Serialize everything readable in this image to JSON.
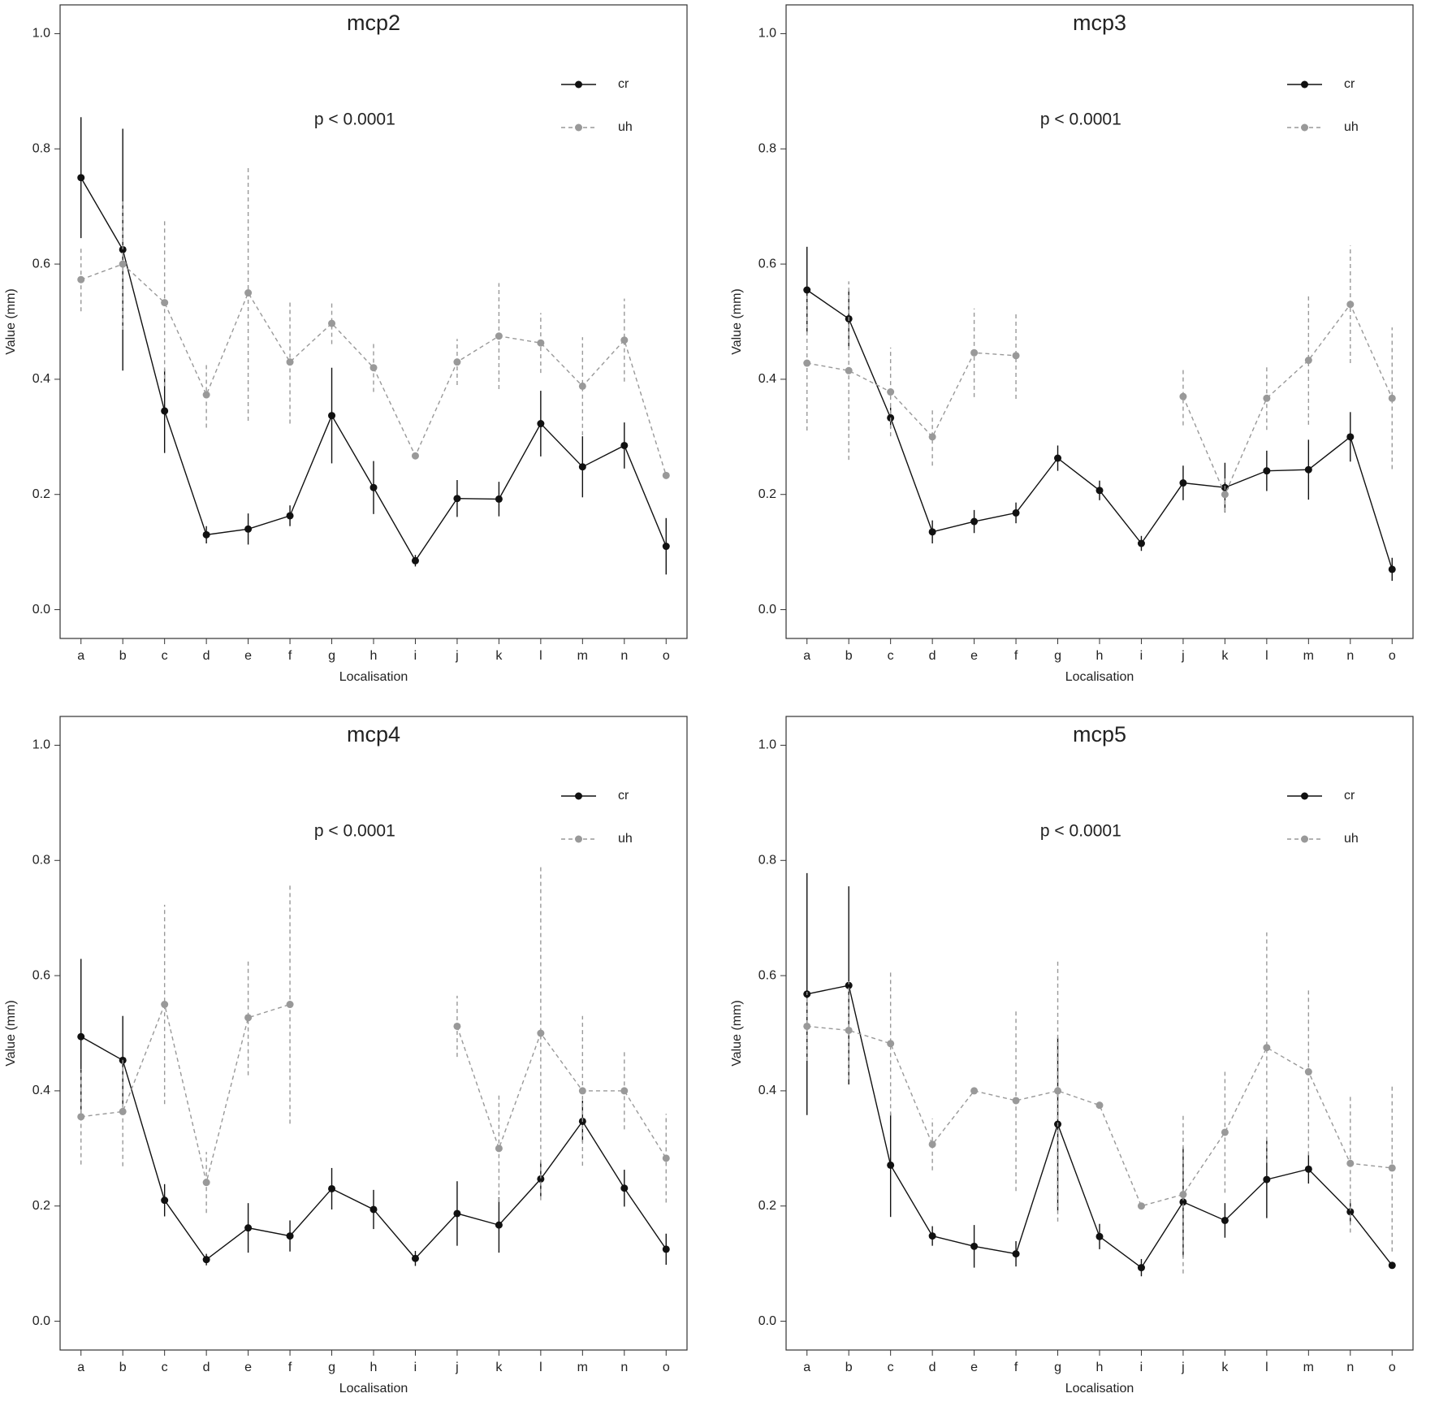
{
  "chart_data": [
    {
      "type": "line",
      "title": "mcp2",
      "annotation": "p < 0.0001",
      "x_label": "Localisation",
      "y_label": "Value (mm)",
      "categories": [
        "a",
        "b",
        "c",
        "d",
        "e",
        "f",
        "g",
        "h",
        "i",
        "j",
        "k",
        "l",
        "m",
        "n",
        "o"
      ],
      "ylim": [
        -0.05,
        1.05
      ],
      "yticks": [
        {
          "value": 0,
          "label": "0.0"
        },
        0.2,
        0.4,
        0.6,
        0.8,
        {
          "value": 1,
          "label": "1.0"
        }
      ],
      "legend": "top-right",
      "series": [
        {
          "name": "cr",
          "color": "#111111",
          "dashed": false,
          "values": [
            0.75,
            0.625,
            0.345,
            0.13,
            0.14,
            0.163,
            0.337,
            0.212,
            0.085,
            0.193,
            0.192,
            0.323,
            0.248,
            0.285,
            0.11
          ],
          "errors": [
            0.105,
            0.21,
            0.073,
            0.015,
            0.027,
            0.018,
            0.083,
            0.046,
            0.01,
            0.032,
            0.03,
            0.057,
            0.053,
            0.04,
            0.049
          ]
        },
        {
          "name": "uh",
          "color": "#999999",
          "dashed": true,
          "values": [
            0.573,
            0.6,
            0.533,
            0.373,
            0.55,
            0.43,
            0.497,
            0.42,
            0.267,
            0.43,
            0.475,
            0.463,
            0.388,
            0.468,
            0.233
          ],
          "errors": [
            0.055,
            0.114,
            0.145,
            0.057,
            0.222,
            0.107,
            0.036,
            0.042,
            0,
            0.04,
            0.092,
            0.052,
            0.085,
            0.072,
            0
          ]
        }
      ]
    },
    {
      "type": "line",
      "title": "mcp3",
      "annotation": "p < 0.0001",
      "x_label": "Localisation",
      "y_label": "Value (mm)",
      "categories": [
        "a",
        "b",
        "c",
        "d",
        "e",
        "f",
        "g",
        "h",
        "i",
        "j",
        "k",
        "l",
        "m",
        "n",
        "o"
      ],
      "ylim": [
        -0.05,
        1.05
      ],
      "yticks": [
        {
          "value": 0,
          "label": "0.0"
        },
        0.2,
        0.4,
        0.6,
        0.8,
        {
          "value": 1,
          "label": "1.0"
        }
      ],
      "legend": "top-right",
      "series": [
        {
          "name": "cr",
          "color": "#111111",
          "dashed": false,
          "values": [
            0.555,
            0.505,
            0.333,
            0.135,
            0.153,
            0.168,
            0.263,
            0.207,
            0.115,
            0.22,
            0.212,
            0.241,
            0.243,
            0.3,
            0.07
          ],
          "errors": [
            0.075,
            0.05,
            0.018,
            0.02,
            0.02,
            0.018,
            0.022,
            0.017,
            0.013,
            0.03,
            0.043,
            0.035,
            0.052,
            0.043,
            0.02
          ]
        },
        {
          "name": "uh",
          "color": "#999999",
          "dashed": true,
          "values": [
            0.428,
            0.415,
            0.378,
            0.3,
            0.446,
            0.441,
            null,
            null,
            null,
            0.37,
            0.2,
            0.367,
            0.433,
            0.53,
            0.367
          ],
          "errors": [
            0.117,
            0.155,
            0.077,
            0.05,
            0.077,
            0.075,
            null,
            null,
            null,
            0.05,
            0.03,
            0.055,
            0.112,
            0.102,
            0.123
          ]
        }
      ]
    },
    {
      "type": "line",
      "title": "mcp4",
      "annotation": "p < 0.0001",
      "x_label": "Localisation",
      "y_label": "Value (mm)",
      "categories": [
        "a",
        "b",
        "c",
        "d",
        "e",
        "f",
        "g",
        "h",
        "i",
        "j",
        "k",
        "l",
        "m",
        "n",
        "o"
      ],
      "ylim": [
        -0.05,
        1.05
      ],
      "yticks": [
        {
          "value": 0,
          "label": "0.0"
        },
        0.2,
        0.4,
        0.6,
        0.8,
        {
          "value": 1,
          "label": "1.0"
        }
      ],
      "legend": "top-right",
      "series": [
        {
          "name": "cr",
          "color": "#111111",
          "dashed": false,
          "values": [
            0.494,
            0.453,
            0.21,
            0.107,
            0.162,
            0.148,
            0.23,
            0.194,
            0.109,
            0.187,
            0.167,
            0.247,
            0.347,
            0.231,
            0.125
          ],
          "errors": [
            0.135,
            0.077,
            0.028,
            0.01,
            0.043,
            0.027,
            0.036,
            0.034,
            0.013,
            0.056,
            0.048,
            0.03,
            0.036,
            0.032,
            0.027
          ]
        },
        {
          "name": "uh",
          "color": "#999999",
          "dashed": true,
          "values": [
            0.355,
            0.364,
            0.55,
            0.241,
            0.527,
            0.55,
            null,
            null,
            null,
            0.512,
            0.3,
            0.5,
            0.4,
            0.4,
            0.283
          ],
          "errors": [
            0.083,
            0.095,
            0.173,
            0.053,
            0.1,
            0.207,
            null,
            null,
            null,
            0.053,
            0.093,
            0.29,
            0.13,
            0.067,
            0.077
          ]
        }
      ]
    },
    {
      "type": "line",
      "title": "mcp5",
      "annotation": "p < 0.0001",
      "x_label": "Localisation",
      "y_label": "Value (mm)",
      "categories": [
        "a",
        "b",
        "c",
        "d",
        "e",
        "f",
        "g",
        "h",
        "i",
        "j",
        "k",
        "l",
        "m",
        "n",
        "o"
      ],
      "ylim": [
        -0.05,
        1.05
      ],
      "yticks": [
        {
          "value": 0,
          "label": "0.0"
        },
        0.2,
        0.4,
        0.6,
        0.8,
        {
          "value": 1,
          "label": "1.0"
        }
      ],
      "legend": "top-right",
      "series": [
        {
          "name": "cr",
          "color": "#111111",
          "dashed": false,
          "values": [
            0.568,
            0.583,
            0.271,
            0.148,
            0.13,
            0.117,
            0.342,
            0.147,
            0.093,
            0.207,
            0.175,
            0.246,
            0.264,
            0.19,
            0.097
          ],
          "errors": [
            0.21,
            0.172,
            0.09,
            0.017,
            0.037,
            0.022,
            0.15,
            0.022,
            0.015,
            0.095,
            0.03,
            0.067,
            0.025,
            0.022,
            0
          ]
        },
        {
          "name": "uh",
          "color": "#999999",
          "dashed": true,
          "values": [
            0.512,
            0.505,
            0.482,
            0.307,
            0.4,
            0.383,
            0.4,
            0.375,
            0.2,
            0.22,
            0.328,
            0.475,
            0.433,
            0.274,
            0.266
          ],
          "errors": [
            0.06,
            0.085,
            0.125,
            0.045,
            0,
            0.157,
            0.227,
            0,
            0,
            0.137,
            0.105,
            0.2,
            0.145,
            0.12,
            0.145
          ]
        }
      ]
    }
  ]
}
